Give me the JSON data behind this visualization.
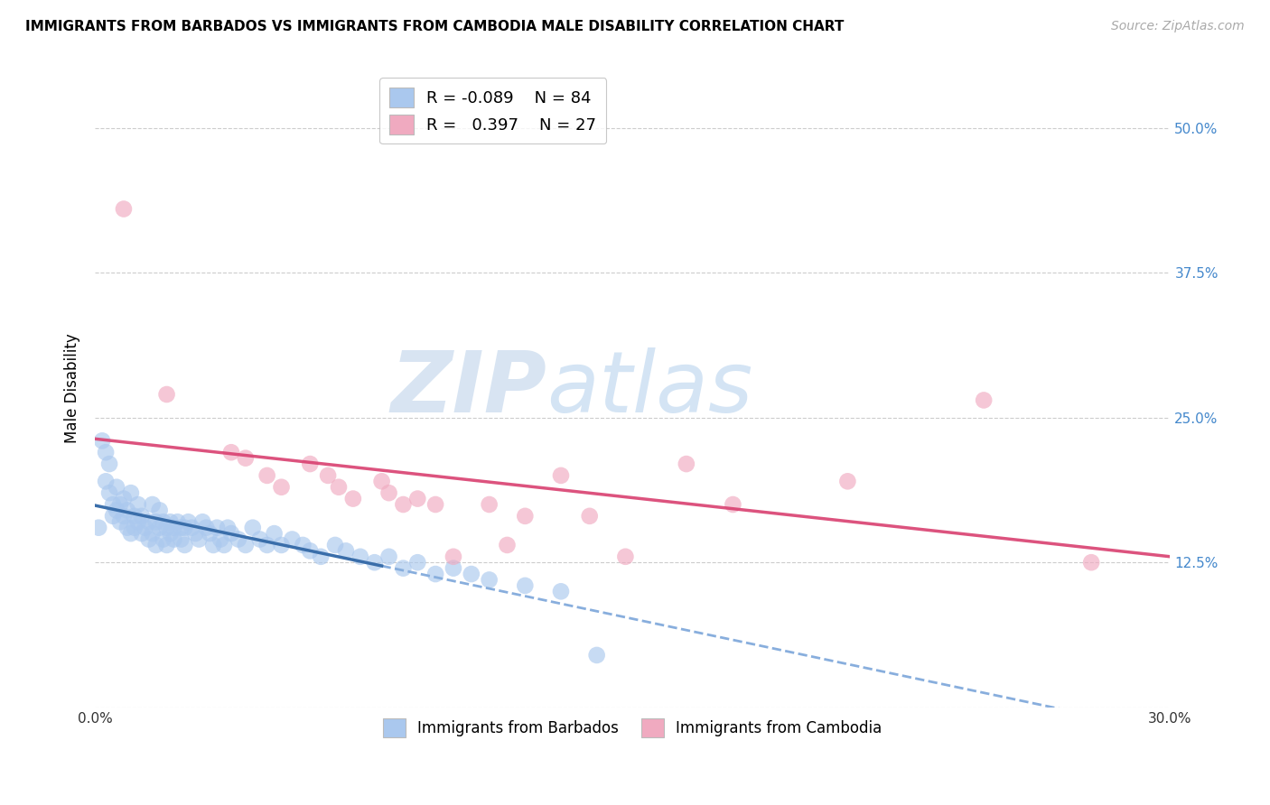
{
  "title": "IMMIGRANTS FROM BARBADOS VS IMMIGRANTS FROM CAMBODIA MALE DISABILITY CORRELATION CHART",
  "source": "Source: ZipAtlas.com",
  "ylabel": "Male Disability",
  "xlim": [
    0.0,
    0.3
  ],
  "ylim": [
    0.0,
    0.55
  ],
  "yticks": [
    0.0,
    0.125,
    0.25,
    0.375,
    0.5
  ],
  "ytick_labels_right": [
    "",
    "12.5%",
    "25.0%",
    "37.5%",
    "50.0%"
  ],
  "xticks": [
    0.0,
    0.05,
    0.1,
    0.15,
    0.2,
    0.25,
    0.3
  ],
  "xtick_labels": [
    "0.0%",
    "",
    "",
    "",
    "",
    "",
    "30.0%"
  ],
  "barbados_R": -0.089,
  "barbados_N": 84,
  "cambodia_R": 0.397,
  "cambodia_N": 27,
  "barbados_color": "#aac8ee",
  "cambodia_color": "#f0aac0",
  "barbados_line_color_solid": "#3a6eaa",
  "barbados_line_color_dash": "#88aedd",
  "cambodia_line_color": "#d94070",
  "watermark_zip": "ZIP",
  "watermark_atlas": "atlas",
  "background_color": "#ffffff",
  "grid_color": "#cccccc",
  "right_tick_color": "#4488cc",
  "barbados_x": [
    0.001,
    0.002,
    0.003,
    0.003,
    0.004,
    0.004,
    0.005,
    0.005,
    0.006,
    0.006,
    0.007,
    0.007,
    0.008,
    0.008,
    0.009,
    0.009,
    0.01,
    0.01,
    0.011,
    0.011,
    0.012,
    0.012,
    0.013,
    0.013,
    0.014,
    0.015,
    0.015,
    0.016,
    0.016,
    0.017,
    0.017,
    0.018,
    0.018,
    0.019,
    0.019,
    0.02,
    0.02,
    0.021,
    0.021,
    0.022,
    0.022,
    0.023,
    0.024,
    0.024,
    0.025,
    0.025,
    0.026,
    0.027,
    0.028,
    0.029,
    0.03,
    0.031,
    0.032,
    0.033,
    0.034,
    0.035,
    0.036,
    0.037,
    0.038,
    0.04,
    0.042,
    0.044,
    0.046,
    0.048,
    0.05,
    0.052,
    0.055,
    0.058,
    0.06,
    0.063,
    0.067,
    0.07,
    0.074,
    0.078,
    0.082,
    0.086,
    0.09,
    0.095,
    0.1,
    0.105,
    0.11,
    0.12,
    0.13,
    0.14
  ],
  "barbados_y": [
    0.155,
    0.23,
    0.22,
    0.195,
    0.21,
    0.185,
    0.175,
    0.165,
    0.19,
    0.17,
    0.16,
    0.175,
    0.165,
    0.18,
    0.155,
    0.17,
    0.185,
    0.15,
    0.165,
    0.155,
    0.175,
    0.16,
    0.15,
    0.165,
    0.155,
    0.16,
    0.145,
    0.175,
    0.15,
    0.16,
    0.14,
    0.17,
    0.155,
    0.145,
    0.16,
    0.155,
    0.14,
    0.15,
    0.16,
    0.145,
    0.155,
    0.16,
    0.145,
    0.155,
    0.14,
    0.155,
    0.16,
    0.155,
    0.15,
    0.145,
    0.16,
    0.155,
    0.15,
    0.14,
    0.155,
    0.145,
    0.14,
    0.155,
    0.15,
    0.145,
    0.14,
    0.155,
    0.145,
    0.14,
    0.15,
    0.14,
    0.145,
    0.14,
    0.135,
    0.13,
    0.14,
    0.135,
    0.13,
    0.125,
    0.13,
    0.12,
    0.125,
    0.115,
    0.12,
    0.115,
    0.11,
    0.105,
    0.1,
    0.045
  ],
  "cambodia_x": [
    0.008,
    0.02,
    0.038,
    0.042,
    0.048,
    0.052,
    0.06,
    0.065,
    0.068,
    0.072,
    0.08,
    0.082,
    0.086,
    0.09,
    0.095,
    0.1,
    0.11,
    0.115,
    0.12,
    0.13,
    0.138,
    0.148,
    0.165,
    0.178,
    0.21,
    0.248,
    0.278
  ],
  "cambodia_y": [
    0.43,
    0.27,
    0.22,
    0.215,
    0.2,
    0.19,
    0.21,
    0.2,
    0.19,
    0.18,
    0.195,
    0.185,
    0.175,
    0.18,
    0.175,
    0.13,
    0.175,
    0.14,
    0.165,
    0.2,
    0.165,
    0.13,
    0.21,
    0.175,
    0.195,
    0.265,
    0.125
  ]
}
